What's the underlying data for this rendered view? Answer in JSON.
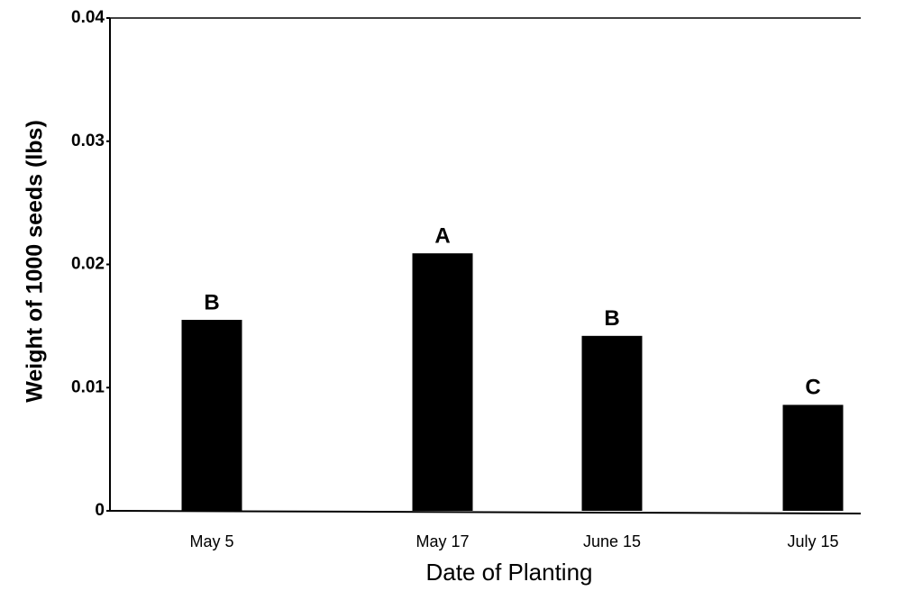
{
  "chart_data": {
    "type": "bar",
    "x_label": "Date of Planting",
    "y_label": "Weight of 1000 seeds (lbs)",
    "categories": [
      "May 5",
      "May 17",
      "June 15",
      "July 15"
    ],
    "values": [
      0.0155,
      0.0209,
      0.0142,
      0.0086
    ],
    "bar_labels": [
      "B",
      "A",
      "B",
      "C"
    ],
    "color": "#000000",
    "ylim": [
      0,
      0.04
    ],
    "yticks": [
      0,
      0.01,
      0.02,
      0.03,
      0.04
    ],
    "grid": false
  }
}
